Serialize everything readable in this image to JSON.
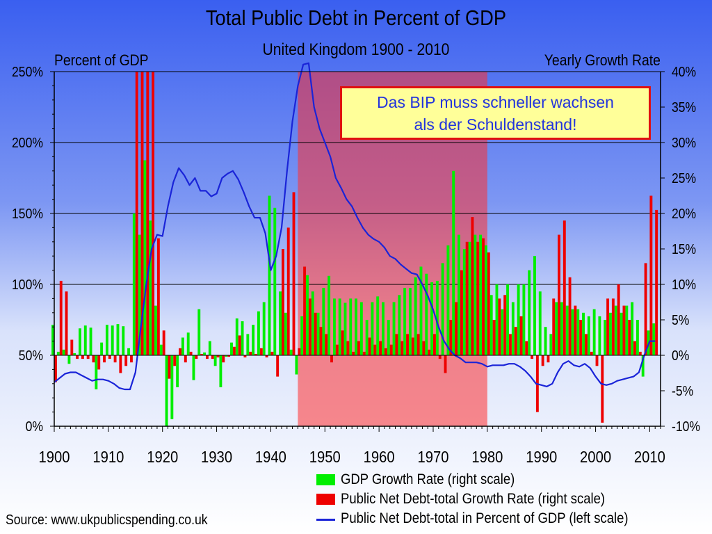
{
  "chart_data": {
    "type": "bar",
    "title": "Total Public Debt in Percent of GDP",
    "subtitle": "United Kingdom 1900 - 2010",
    "left_axis_title": "Percent of GDP",
    "right_axis_title": "Yearly Growth Rate",
    "left_ylim": [
      0,
      250
    ],
    "right_ylim": [
      -10,
      40
    ],
    "left_ticks": [
      "0%",
      "50%",
      "100%",
      "150%",
      "200%",
      "250%"
    ],
    "right_ticks": [
      "-10%",
      "-5%",
      "0%",
      "5%",
      "10%",
      "15%",
      "20%",
      "25%",
      "30%",
      "35%",
      "40%"
    ],
    "x_ticks": [
      "1900",
      "1910",
      "1920",
      "1930",
      "1940",
      "1950",
      "1960",
      "1970",
      "1980",
      "1990",
      "2000",
      "2010"
    ],
    "x_range": [
      1900,
      2012
    ],
    "grid": true,
    "highlight_range": [
      1945,
      1980
    ],
    "annotation_line1": "Das BIP muss schneller wachsen",
    "annotation_line2": "als der Schuldenstand!",
    "source": "Source: www.ukpublicspending.co.uk",
    "series": [
      {
        "name": "GDP Growth Rate (right scale)",
        "color": "#00ee00",
        "axis": "right",
        "years": [
          1900,
          1901,
          1902,
          1903,
          1904,
          1905,
          1906,
          1907,
          1908,
          1909,
          1910,
          1911,
          1912,
          1913,
          1914,
          1915,
          1916,
          1917,
          1918,
          1919,
          1920,
          1921,
          1922,
          1923,
          1924,
          1925,
          1926,
          1927,
          1928,
          1929,
          1930,
          1931,
          1932,
          1933,
          1934,
          1935,
          1936,
          1937,
          1938,
          1939,
          1940,
          1941,
          1942,
          1943,
          1944,
          1945,
          1946,
          1947,
          1948,
          1949,
          1950,
          1951,
          1952,
          1953,
          1954,
          1955,
          1956,
          1957,
          1958,
          1959,
          1960,
          1961,
          1962,
          1963,
          1964,
          1965,
          1966,
          1967,
          1968,
          1969,
          1970,
          1971,
          1972,
          1973,
          1974,
          1975,
          1976,
          1977,
          1978,
          1979,
          1980,
          1981,
          1982,
          1983,
          1984,
          1985,
          1986,
          1987,
          1988,
          1989,
          1990,
          1991,
          1992,
          1993,
          1994,
          1995,
          1996,
          1997,
          1998,
          1999,
          2000,
          2001,
          2002,
          2003,
          2004,
          2005,
          2006,
          2007,
          2008,
          2009,
          2010,
          2011
        ],
        "values": [
          4.3,
          0.5,
          0.8,
          -1.2,
          0.3,
          3.8,
          4.2,
          3.9,
          -4.8,
          1.8,
          4.3,
          4.2,
          4.4,
          4.1,
          1.0,
          20,
          17,
          27.5,
          19,
          7,
          1.5,
          -10,
          -9,
          -4.5,
          2.5,
          3.2,
          -3.5,
          6.5,
          0.4,
          2.0,
          -1.5,
          -4.5,
          -0.2,
          1.8,
          5.2,
          4.8,
          3.0,
          4.3,
          6.2,
          7.5,
          22.5,
          20.8,
          9.0,
          6.0,
          0.8,
          -2.7,
          5.5,
          11.3,
          9.0,
          6.0,
          9.5,
          11.2,
          8.0,
          8.0,
          7.4,
          8.0,
          8.0,
          7.5,
          5.0,
          7.5,
          8.3,
          7.5,
          5.0,
          7.5,
          8.5,
          9.5,
          9.5,
          11.0,
          12.5,
          11.5,
          10.3,
          10.5,
          13.0,
          15.5,
          26.0,
          17.0,
          15.0,
          16.0,
          17.0,
          17.0,
          15.5,
          8.5,
          10.0,
          6.5,
          10.0,
          7.5,
          10.0,
          10.0,
          12.0,
          14.0,
          9.0,
          4.0,
          3.0,
          7.5,
          7.5,
          7.0,
          6.5,
          6.5,
          6.0,
          5.5,
          6.5,
          5.5,
          5.0,
          6.0,
          7.0,
          6.0,
          7.0,
          7.5,
          5.0,
          -3.0,
          3.5,
          4.5
        ]
      },
      {
        "name": "Public Net Debt-total Growth Rate (right scale)",
        "color": "#ee0000",
        "axis": "right",
        "years": [
          1900,
          1901,
          1902,
          1903,
          1904,
          1905,
          1906,
          1907,
          1908,
          1909,
          1910,
          1911,
          1912,
          1913,
          1914,
          1915,
          1916,
          1917,
          1918,
          1919,
          1920,
          1921,
          1922,
          1923,
          1924,
          1925,
          1926,
          1927,
          1928,
          1929,
          1930,
          1931,
          1932,
          1933,
          1934,
          1935,
          1936,
          1937,
          1938,
          1939,
          1940,
          1941,
          1942,
          1943,
          1944,
          1945,
          1946,
          1947,
          1948,
          1949,
          1950,
          1951,
          1952,
          1953,
          1954,
          1955,
          1956,
          1957,
          1958,
          1959,
          1960,
          1961,
          1962,
          1963,
          1964,
          1965,
          1966,
          1967,
          1968,
          1969,
          1970,
          1971,
          1972,
          1973,
          1974,
          1975,
          1976,
          1977,
          1978,
          1979,
          1980,
          1981,
          1982,
          1983,
          1984,
          1985,
          1986,
          1987,
          1988,
          1989,
          1990,
          1991,
          1992,
          1993,
          1994,
          1995,
          1996,
          1997,
          1998,
          1999,
          2000,
          2001,
          2002,
          2003,
          2004,
          2005,
          2006,
          2007,
          2008,
          2009,
          2010,
          2011
        ],
        "values": [
          -3.8,
          10.5,
          9.0,
          2.2,
          -0.5,
          -0.5,
          -0.5,
          -1.0,
          -2.0,
          -1.0,
          -0.5,
          -1.0,
          -2.5,
          -1.5,
          -1.0,
          40,
          40,
          40,
          40,
          16.5,
          3.5,
          -3.3,
          -1.5,
          1.0,
          -1.0,
          0.5,
          -0.5,
          0.2,
          -0.5,
          -0.5,
          -0.3,
          -1.0,
          -0.2,
          1.2,
          2.8,
          -0.3,
          0.5,
          0.2,
          1.0,
          -0.3,
          0.5,
          -3.0,
          15.0,
          18.0,
          23.0,
          1.0,
          12.5,
          8.0,
          6.0,
          4.0,
          3.0,
          -1.0,
          1.5,
          3.5,
          2.0,
          0.5,
          2.0,
          0.5,
          2.5,
          1.5,
          2.0,
          1.0,
          1.5,
          3.0,
          2.0,
          3.0,
          2.5,
          3.0,
          2.0,
          0.8,
          3.0,
          -0.5,
          -2.5,
          5.0,
          7.5,
          12.0,
          16.0,
          19.5,
          16.0,
          16.5,
          14.5,
          5.0,
          8.0,
          8.5,
          3.0,
          4.0,
          5.5,
          2.0,
          -0.5,
          -8.0,
          -1.5,
          -1.0,
          8.0,
          17.0,
          19.0,
          11.0,
          7.0,
          5.0,
          3.0,
          0.5,
          -1.5,
          -9.5,
          8.0,
          8.0,
          10.0,
          7.0,
          5.0,
          2.0,
          0.5,
          13.0,
          22.5,
          20.5
        ]
      },
      {
        "name": "Public Net Debt-total in Percent of GDP (left scale)",
        "color": "#1a24d8",
        "axis": "left",
        "years": [
          1900,
          1901,
          1902,
          1903,
          1904,
          1905,
          1906,
          1907,
          1908,
          1909,
          1910,
          1911,
          1912,
          1913,
          1914,
          1915,
          1916,
          1917,
          1918,
          1919,
          1920,
          1921,
          1922,
          1923,
          1924,
          1925,
          1926,
          1927,
          1928,
          1929,
          1930,
          1931,
          1932,
          1933,
          1934,
          1935,
          1936,
          1937,
          1938,
          1939,
          1940,
          1941,
          1942,
          1943,
          1944,
          1945,
          1946,
          1947,
          1948,
          1949,
          1950,
          1951,
          1952,
          1953,
          1954,
          1955,
          1956,
          1957,
          1958,
          1959,
          1960,
          1961,
          1962,
          1963,
          1964,
          1965,
          1966,
          1967,
          1968,
          1969,
          1970,
          1971,
          1972,
          1973,
          1974,
          1975,
          1976,
          1977,
          1978,
          1979,
          1980,
          1981,
          1982,
          1983,
          1984,
          1985,
          1986,
          1987,
          1988,
          1989,
          1990,
          1991,
          1992,
          1993,
          1994,
          1995,
          1996,
          1997,
          1998,
          1999,
          2000,
          2001,
          2002,
          2003,
          2004,
          2005,
          2006,
          2007,
          2008,
          2009,
          2010,
          2011
        ],
        "values": [
          31,
          34,
          37,
          38,
          38,
          36,
          34,
          32,
          33,
          33,
          32,
          30,
          27,
          26,
          26,
          38,
          70,
          100,
          125,
          135,
          134,
          155,
          172,
          182,
          177,
          170,
          175,
          166,
          166,
          162,
          164,
          175,
          178,
          180,
          174,
          165,
          155,
          147,
          147,
          136,
          110,
          120,
          140,
          180,
          215,
          240,
          255,
          256,
          225,
          210,
          200,
          190,
          175,
          168,
          160,
          155,
          147,
          140,
          135,
          132,
          130,
          126,
          120,
          118,
          114,
          111,
          108,
          107,
          100,
          92,
          82,
          70,
          60,
          54,
          50,
          48,
          45,
          45,
          45,
          44,
          42,
          43,
          43,
          43,
          44,
          44,
          42,
          39,
          35,
          30,
          29,
          28,
          30,
          38,
          44,
          46,
          43,
          42,
          44,
          41,
          35,
          30,
          29,
          30,
          32,
          33,
          34,
          35,
          38,
          50,
          60,
          60
        ],
        "draw_until": 2011
      }
    ]
  }
}
